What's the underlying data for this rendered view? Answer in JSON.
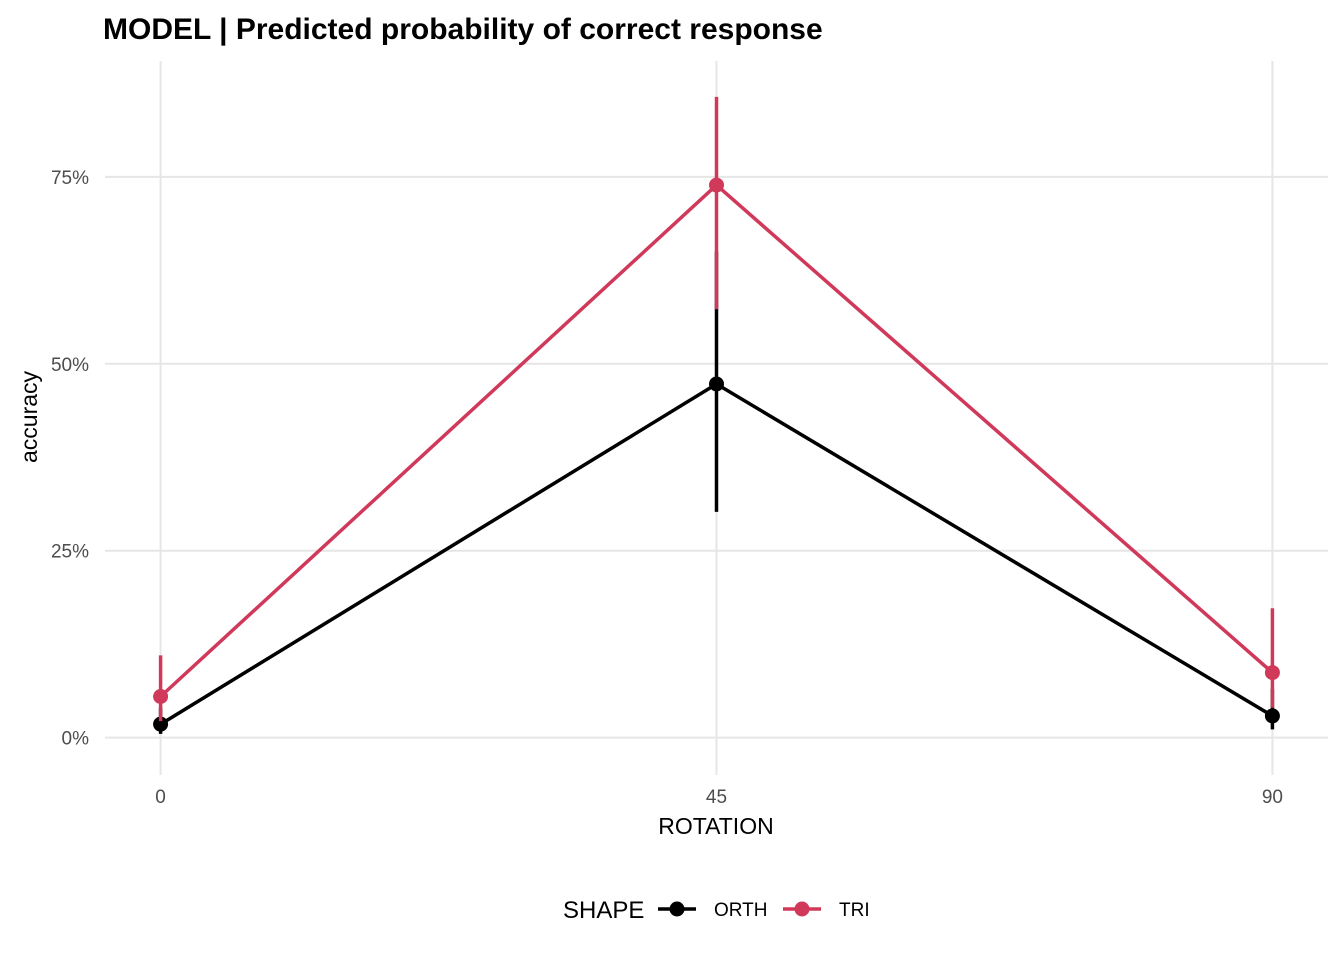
{
  "chart_data": {
    "type": "line",
    "title": "MODEL | Predicted probability of correct response",
    "xlabel": "ROTATION",
    "ylabel": "accuracy",
    "categories": [
      "0",
      "45",
      "90"
    ],
    "x": [
      0,
      45,
      90
    ],
    "xlim": [
      -4.5,
      94.5
    ],
    "ylim": [
      -0.05,
      0.905
    ],
    "yticks": [
      0,
      0.25,
      0.5,
      0.75
    ],
    "ytick_labels": [
      "0%",
      "25%",
      "50%",
      "75%"
    ],
    "grid": true,
    "legend": {
      "title": "SHAPE",
      "position": "bottom"
    },
    "series": [
      {
        "name": "ORTH",
        "color": "#000000",
        "values": [
          0.018,
          0.473,
          0.029
        ],
        "lower": [
          0.005,
          0.302,
          0.011
        ],
        "upper": [
          0.04,
          0.65,
          0.065
        ]
      },
      {
        "name": "TRI",
        "color": "#d1395b",
        "values": [
          0.055,
          0.739,
          0.087
        ],
        "lower": [
          0.022,
          0.573,
          0.04
        ],
        "upper": [
          0.11,
          0.857,
          0.173
        ]
      }
    ]
  }
}
